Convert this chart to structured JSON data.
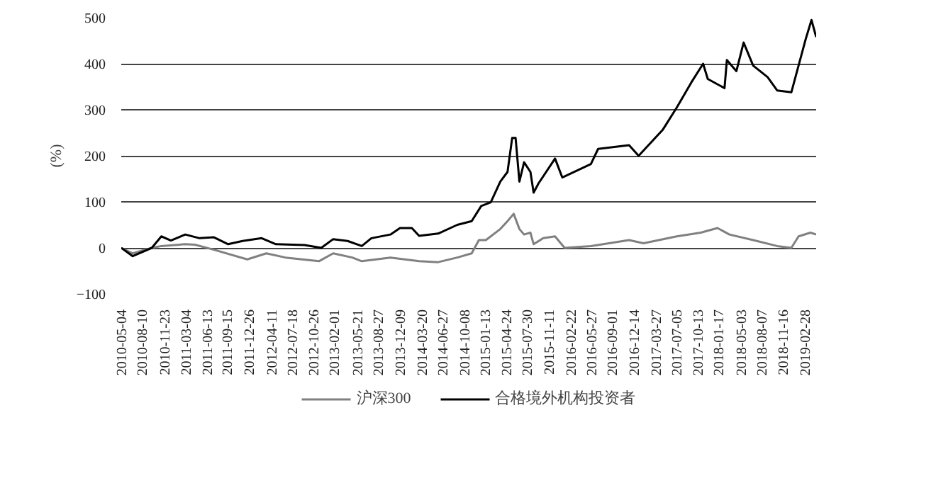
{
  "chart_data": {
    "type": "line",
    "ylabel": "(%)",
    "ylim": [
      -100,
      500
    ],
    "yticks": [
      -100,
      0,
      100,
      200,
      300,
      400,
      500
    ],
    "grid": "y",
    "legend": "bottom",
    "line_style": "solid",
    "marker": "none",
    "xlim": [
      "2010-05-04",
      "2019-04-23"
    ],
    "xticks": [
      {
        "value": "2010-05-04",
        "label": "2010-05-04"
      },
      {
        "value": "2010-08-10",
        "label": "2010-08-10"
      },
      {
        "value": "2010-11-23",
        "label": "2010-11-23"
      },
      {
        "value": "2011-03-04",
        "label": "2011-03-04"
      },
      {
        "value": "2011-06-13",
        "label": "2011-06-13"
      },
      {
        "value": "2011-09-15",
        "label": "2011-09-15"
      },
      {
        "value": "2011-12-26",
        "label": "2011-12-26"
      },
      {
        "value": "2012-04-11",
        "label": "2012-04-11"
      },
      {
        "value": "2012-07-18",
        "label": "2012-07-18"
      },
      {
        "value": "2012-10-26",
        "label": "2012-10-26"
      },
      {
        "value": "2013-02-01",
        "label": "2013-02-01"
      },
      {
        "value": "2013-05-21",
        "label": "2013-05-21"
      },
      {
        "value": "2013-08-27",
        "label": "2013-08-27"
      },
      {
        "value": "2013-12-09",
        "label": "2013-12-09"
      },
      {
        "value": "2014-03-20",
        "label": "2014-03-20"
      },
      {
        "value": "2014-06-27",
        "label": "2014-06-27"
      },
      {
        "value": "2014-10-08",
        "label": "2014-10-08"
      },
      {
        "value": "2015-01-13",
        "label": "2015-01-13"
      },
      {
        "value": "2015-04-24",
        "label": "2015-04-24"
      },
      {
        "value": "2015-07-30",
        "label": "2015-07-30"
      },
      {
        "value": "2015-11-11",
        "label": "2015-11-11"
      },
      {
        "value": "2016-02-22",
        "label": "2016-02-22"
      },
      {
        "value": "2016-05-27",
        "label": "2016-05-27"
      },
      {
        "value": "2016-09-01",
        "label": "2016-09-01"
      },
      {
        "value": "2016-12-14",
        "label": "2016-12-14"
      },
      {
        "value": "2017-03-27",
        "label": "2017-03-27"
      },
      {
        "value": "2017-07-05",
        "label": "2017-07-05"
      },
      {
        "value": "2017-10-13",
        "label": "2017-10-13"
      },
      {
        "value": "2018-01-17",
        "label": "2018-01-17"
      },
      {
        "value": "2018-05-03",
        "label": "2018-05-03"
      },
      {
        "value": "2018-08-07",
        "label": "2018-08-07"
      },
      {
        "value": "2018-11-16",
        "label": "2018-11-16"
      },
      {
        "value": "2019-02-28",
        "label": "2019-02-28"
      }
    ],
    "series": [
      {
        "name": "沪深300",
        "color": "#808080",
        "x": [
          "2010-05-04",
          "2010-06-27",
          "2010-09-25",
          "2010-11-09",
          "2011-03-02",
          "2011-04-16",
          "2011-07-15",
          "2011-12-19",
          "2012-03-18",
          "2012-06-16",
          "2012-11-21",
          "2013-01-27",
          "2013-04-27",
          "2013-06-11",
          "2013-10-24",
          "2014-03-08",
          "2014-06-06",
          "2014-09-04",
          "2014-11-11",
          "2014-12-15",
          "2015-01-17",
          "2015-03-26",
          "2015-04-29",
          "2015-05-28",
          "2015-06-24",
          "2015-07-16",
          "2015-08-15",
          "2015-08-30",
          "2015-10-14",
          "2015-12-09",
          "2016-01-23",
          "2016-05-26",
          "2016-11-22",
          "2017-01-29",
          "2017-07-05",
          "2017-10-26",
          "2018-01-13",
          "2018-03-10",
          "2018-06-30",
          "2018-10-21",
          "2018-12-27",
          "2019-01-30",
          "2019-03-27",
          "2019-04-23"
        ],
        "values": [
          0,
          -12,
          0,
          4,
          8,
          7,
          -4,
          -25,
          -12,
          -21,
          -29,
          -12,
          -21,
          -29,
          -21,
          -29,
          -31,
          -21,
          -12,
          17,
          17,
          41,
          58,
          74,
          41,
          29,
          33,
          8,
          21,
          25,
          0,
          4,
          17,
          10,
          25,
          33,
          43,
          29,
          17,
          4,
          0,
          25,
          33,
          29
        ]
      },
      {
        "name": "合格境外机构投资者",
        "color": "#000000",
        "x": [
          "2010-05-04",
          "2010-06-27",
          "2010-09-25",
          "2010-11-09",
          "2010-12-24",
          "2011-03-02",
          "2011-05-08",
          "2011-07-15",
          "2011-09-20",
          "2011-11-27",
          "2012-02-25",
          "2012-05-02",
          "2012-09-14",
          "2012-12-02",
          "2013-01-27",
          "2013-04-05",
          "2013-06-11",
          "2013-07-26",
          "2013-10-24",
          "2013-12-08",
          "2014-02-02",
          "2014-03-08",
          "2014-06-06",
          "2014-09-04",
          "2014-11-11",
          "2014-12-26",
          "2015-02-09",
          "2015-03-26",
          "2015-04-29",
          "2015-05-21",
          "2015-06-06",
          "2015-06-24",
          "2015-07-16",
          "2015-08-15",
          "2015-08-30",
          "2015-09-22",
          "2015-12-09",
          "2016-01-12",
          "2016-05-26",
          "2016-06-29",
          "2016-11-22",
          "2017-01-06",
          "2017-04-29",
          "2017-07-05",
          "2017-09-11",
          "2017-11-06",
          "2017-11-28",
          "2018-02-15",
          "2018-02-26",
          "2018-04-12",
          "2018-05-16",
          "2018-06-30",
          "2018-09-06",
          "2018-10-21",
          "2018-12-27",
          "2019-01-30",
          "2019-03-05",
          "2019-04-01",
          "2019-04-23"
        ],
        "values": [
          0,
          -18,
          0,
          25,
          16,
          29,
          21,
          23,
          8,
          15,
          21,
          8,
          6,
          0,
          19,
          15,
          4,
          21,
          29,
          43,
          43,
          26,
          31,
          50,
          58,
          91,
          99,
          144,
          165,
          239,
          239,
          144,
          186,
          165,
          120,
          140,
          194,
          153,
          182,
          215,
          223,
          200,
          256,
          305,
          359,
          400,
          367,
          347,
          408,
          384,
          446,
          396,
          371,
          342,
          338,
          396,
          454,
          495,
          458
        ]
      }
    ]
  }
}
